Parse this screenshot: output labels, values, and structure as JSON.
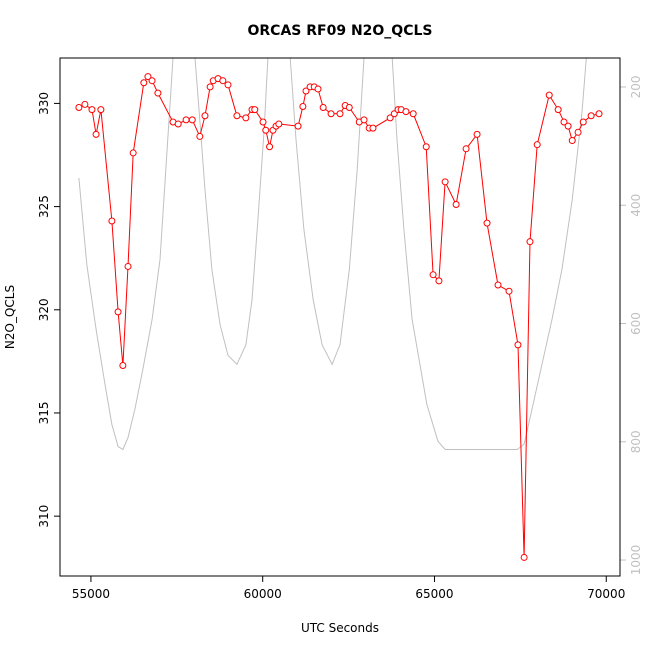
{
  "chart_data": {
    "type": "line",
    "title": "ORCAS RF09 N2O_QCLS",
    "xlabel": "UTC Seconds",
    "ylabel": "N2O_QCLS",
    "xlim": [
      54100,
      70400
    ],
    "xticks": [
      55000,
      60000,
      65000,
      70000
    ],
    "ylim": [
      307.1,
      332.2
    ],
    "yticks": [
      310,
      315,
      320,
      325,
      330
    ],
    "y2lim": [
      1027,
      151
    ],
    "y2ticks": [
      200,
      400,
      600,
      800,
      1000
    ],
    "series": [
      {
        "color": "#ff0000",
        "markers": true,
        "x": [
          54650,
          54825,
          55030,
          55150,
          55290,
          55610,
          55790,
          55930,
          56080,
          56230,
          56540,
          56660,
          56780,
          56950,
          57390,
          57540,
          57770,
          57950,
          58170,
          58320,
          58470,
          58560,
          58700,
          58840,
          58990,
          59250,
          59510,
          59690,
          59770,
          60010,
          60090,
          60200,
          60300,
          60390,
          60470,
          61030,
          61170,
          61260,
          61380,
          61500,
          61610,
          61760,
          61990,
          62250,
          62400,
          62520,
          62810,
          62950,
          63100,
          63210,
          63710,
          63830,
          63940,
          64030,
          64170,
          64380,
          64760,
          64960,
          65130,
          65310,
          65630,
          65920,
          66240,
          66530,
          66850,
          67170,
          67430,
          67610,
          67780,
          67990,
          68340,
          68600,
          68770,
          68890,
          69010,
          69180,
          69330,
          69560,
          69790
        ],
        "values": [
          329.8,
          329.95,
          329.7,
          328.5,
          329.7,
          324.3,
          319.9,
          317.3,
          322.1,
          327.6,
          331.0,
          331.3,
          331.1,
          330.5,
          329.1,
          329.0,
          329.2,
          329.2,
          328.4,
          329.4,
          330.8,
          331.1,
          331.2,
          331.1,
          330.9,
          329.4,
          329.3,
          329.7,
          329.7,
          329.1,
          328.7,
          327.9,
          328.7,
          328.9,
          329.0,
          328.9,
          329.85,
          330.6,
          330.8,
          330.8,
          330.7,
          329.8,
          329.5,
          329.5,
          329.9,
          329.8,
          329.1,
          329.2,
          328.8,
          328.8,
          329.3,
          329.5,
          329.7,
          329.7,
          329.6,
          329.5,
          327.9,
          321.7,
          321.4,
          326.2,
          325.1,
          327.8,
          328.5,
          324.2,
          321.2,
          320.9,
          318.3,
          308.0,
          323.3,
          328.0,
          330.4,
          329.7,
          329.1,
          328.9,
          328.2,
          328.6,
          329.1,
          329.4,
          329.5
        ]
      },
      {
        "color": "#c0c0c0",
        "axis": "y2",
        "markers": false,
        "x": [
          54650,
          54880,
          55150,
          55410,
          55610,
          55790,
          55930,
          56080,
          56280,
          56510,
          56780,
          57010,
          57180,
          57390,
          58030,
          58170,
          58320,
          58520,
          58760,
          58990,
          59250,
          59510,
          59690,
          59860,
          60040,
          60150,
          60800,
          60970,
          61200,
          61470,
          61730,
          62020,
          62250,
          62520,
          62750,
          62950,
          63770,
          63910,
          64110,
          64350,
          64780,
          65100,
          65310,
          67410,
          67610,
          67840,
          68130,
          68420,
          68710,
          69010,
          69300,
          69420
        ],
        "values": [
          354,
          500,
          610,
          703,
          771,
          808,
          813,
          793,
          745,
          678,
          593,
          492,
          340,
          151,
          151,
          256,
          374,
          509,
          602,
          654,
          669,
          636,
          560,
          425,
          273,
          151,
          151,
          289,
          441,
          560,
          636,
          669,
          636,
          509,
          340,
          151,
          151,
          289,
          441,
          593,
          737,
          799,
          813,
          813,
          804,
          745,
          669,
          593,
          509,
          391,
          239,
          151
        ]
      }
    ]
  }
}
